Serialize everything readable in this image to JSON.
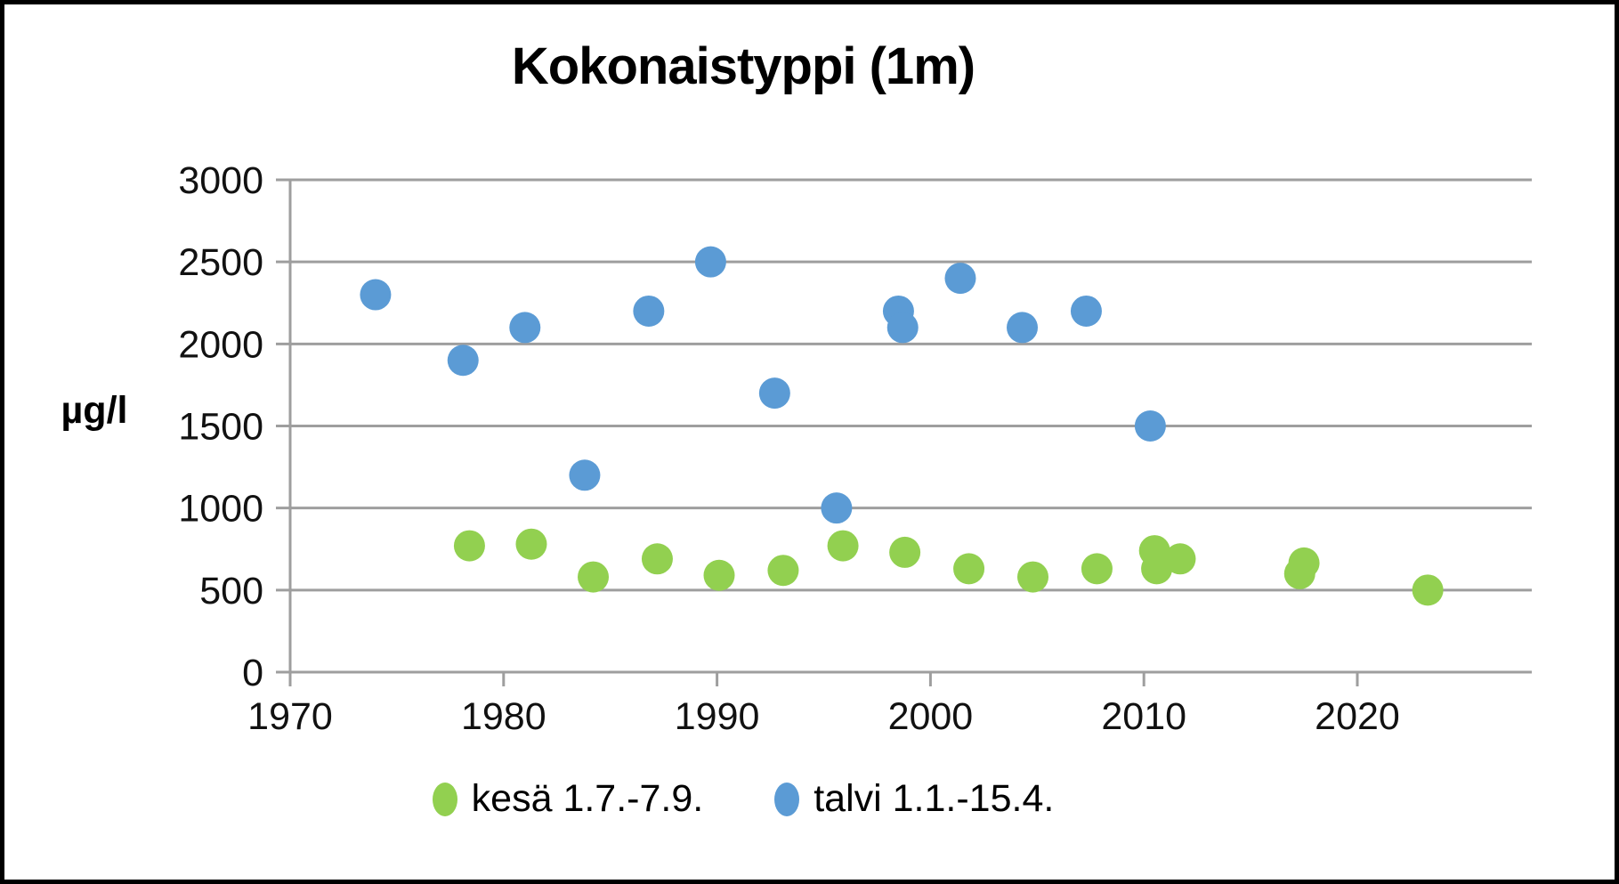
{
  "chart_data": {
    "type": "scatter",
    "title": "Kokonaistyppi (1m)",
    "ylabel": "µg/l",
    "xlabel": "",
    "grid": true,
    "legend_position": "bottom",
    "x_range": [
      1970,
      2028.2
    ],
    "y_range": [
      0,
      3000
    ],
    "x_ticks": [
      "1970",
      "1980",
      "1990",
      "2000",
      "2010",
      "2020"
    ],
    "y_ticks": [
      "0",
      "500",
      "1000",
      "1500",
      "2000",
      "2500",
      "3000"
    ],
    "colors": {
      "gridline": "#9e9e9e",
      "axis": "#9e9e9e",
      "tick_label": "#111111"
    },
    "series": [
      {
        "name": "kesä 1.7.-7.9.",
        "color": "#92D050",
        "points": [
          [
            1978.4,
            770
          ],
          [
            1981.3,
            780
          ],
          [
            1984.2,
            580
          ],
          [
            1987.2,
            690
          ],
          [
            1990.1,
            590
          ],
          [
            1993.1,
            620
          ],
          [
            1995.9,
            770
          ],
          [
            1998.8,
            730
          ],
          [
            2001.8,
            630
          ],
          [
            2004.8,
            580
          ],
          [
            2007.8,
            630
          ],
          [
            2010.5,
            740
          ],
          [
            2010.6,
            630
          ],
          [
            2011.7,
            690
          ],
          [
            2017.3,
            600
          ],
          [
            2017.5,
            665
          ],
          [
            2023.3,
            500
          ]
        ]
      },
      {
        "name": "talvi 1.1.-15.4.",
        "color": "#5B9BD5",
        "points": [
          [
            1974.0,
            2300
          ],
          [
            1978.1,
            1900
          ],
          [
            1981.0,
            2100
          ],
          [
            1983.8,
            1200
          ],
          [
            1986.8,
            2200
          ],
          [
            1989.7,
            2500
          ],
          [
            1992.7,
            1700
          ],
          [
            1995.6,
            1000
          ],
          [
            1998.5,
            2200
          ],
          [
            1998.7,
            2100
          ],
          [
            2001.4,
            2400
          ],
          [
            2004.3,
            2100
          ],
          [
            2007.3,
            2200
          ],
          [
            2010.3,
            1500
          ]
        ]
      }
    ]
  }
}
